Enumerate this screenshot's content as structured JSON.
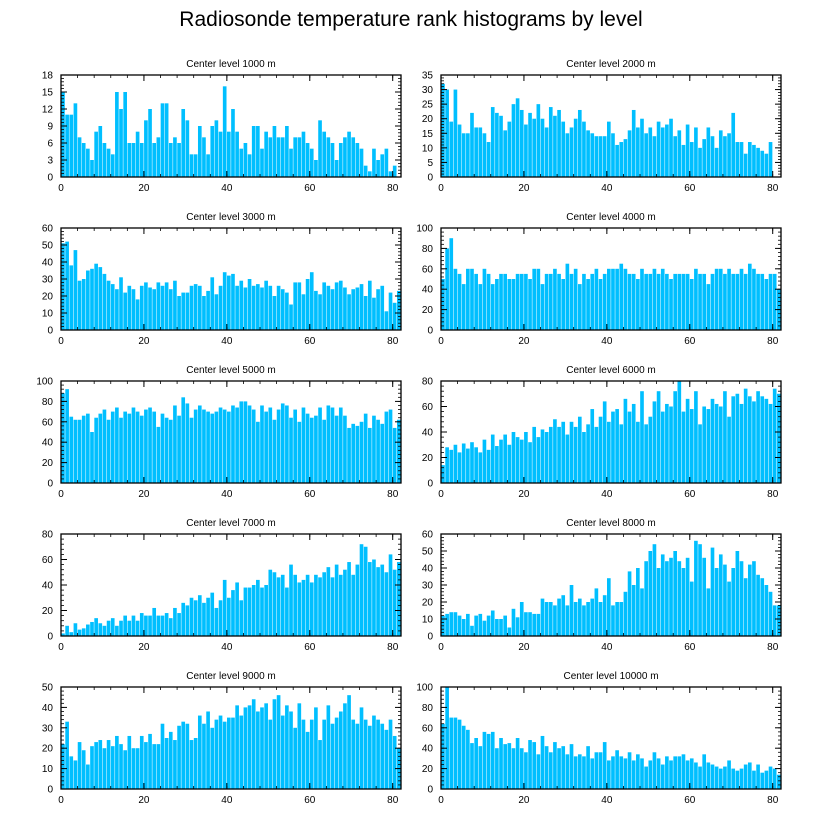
{
  "figure_title": "Radiosonde temperature rank histograms by level",
  "colors": {
    "bar": "#00bfff",
    "bar_edge": "#ffffff",
    "axis": "#000000"
  },
  "chart_data": [
    {
      "type": "bar",
      "title": "Center level 1000 m",
      "xlim": [
        0,
        82
      ],
      "ylim": [
        0,
        18
      ],
      "xticks": [
        0,
        20,
        40,
        60,
        80
      ],
      "yticks": [
        0,
        3,
        6,
        9,
        12,
        15,
        18
      ],
      "values": [
        15,
        11,
        11,
        13,
        7,
        6,
        5,
        3,
        8,
        9,
        6,
        5,
        4,
        15,
        12,
        15,
        6,
        6,
        8,
        6,
        10,
        12,
        6,
        7,
        13,
        13,
        6,
        7,
        6,
        12,
        10,
        4,
        4,
        9,
        7,
        4,
        9,
        10,
        8,
        16,
        8,
        12,
        8,
        5,
        6,
        4,
        9,
        9,
        5,
        8,
        7,
        9,
        7,
        7,
        9,
        5,
        7,
        7,
        8,
        6,
        5,
        3,
        10,
        8,
        7,
        6,
        3,
        6,
        7,
        8,
        7,
        6,
        5,
        2,
        1,
        5,
        3,
        4,
        5,
        1,
        2
      ]
    },
    {
      "type": "bar",
      "title": "Center level 2000 m",
      "xlim": [
        0,
        82
      ],
      "ylim": [
        0,
        35
      ],
      "xticks": [
        0,
        20,
        40,
        60,
        80
      ],
      "yticks": [
        0,
        5,
        10,
        15,
        20,
        25,
        30,
        35
      ],
      "values": [
        32,
        30,
        19,
        30,
        18,
        15,
        15,
        22,
        17,
        17,
        15,
        12,
        24,
        22,
        21,
        16,
        19,
        25,
        27,
        23,
        18,
        22,
        20,
        25,
        20,
        17,
        24,
        21,
        23,
        19,
        15,
        17,
        20,
        23,
        19,
        16,
        15,
        14,
        14,
        14,
        19,
        15,
        11,
        12,
        13,
        16,
        23,
        17,
        20,
        15,
        17,
        14,
        19,
        17,
        18,
        20,
        14,
        16,
        11,
        18,
        12,
        17,
        10,
        13,
        17,
        14,
        10,
        16,
        14,
        15,
        22,
        12,
        12,
        8,
        12,
        11,
        10,
        9,
        8,
        12
      ]
    },
    {
      "type": "bar",
      "title": "Center level 3000 m",
      "xlim": [
        0,
        82
      ],
      "ylim": [
        0,
        60
      ],
      "xticks": [
        0,
        20,
        40,
        60,
        80
      ],
      "yticks": [
        0,
        10,
        20,
        30,
        40,
        50,
        60
      ],
      "values": [
        51,
        52,
        38,
        47,
        29,
        30,
        35,
        36,
        39,
        37,
        33,
        29,
        27,
        24,
        31,
        22,
        26,
        24,
        18,
        26,
        28,
        25,
        24,
        28,
        26,
        28,
        24,
        29,
        20,
        22,
        22,
        26,
        27,
        26,
        20,
        23,
        31,
        21,
        26,
        34,
        32,
        33,
        26,
        29,
        25,
        30,
        26,
        27,
        25,
        29,
        26,
        20,
        26,
        24,
        22,
        15,
        28,
        28,
        21,
        30,
        34,
        23,
        21,
        28,
        26,
        24,
        28,
        29,
        25,
        21,
        24,
        25,
        27,
        20,
        29,
        19,
        24,
        26,
        11,
        22,
        16,
        23
      ]
    },
    {
      "type": "bar",
      "title": "Center level 4000 m",
      "xlim": [
        0,
        82
      ],
      "ylim": [
        0,
        100
      ],
      "xticks": [
        0,
        20,
        40,
        60,
        80
      ],
      "yticks": [
        0,
        20,
        40,
        60,
        80,
        100
      ],
      "values": [
        50,
        80,
        90,
        60,
        55,
        45,
        60,
        60,
        55,
        45,
        60,
        55,
        45,
        50,
        55,
        55,
        50,
        50,
        55,
        55,
        55,
        50,
        60,
        60,
        45,
        55,
        55,
        60,
        55,
        50,
        65,
        55,
        60,
        45,
        55,
        50,
        55,
        60,
        50,
        55,
        60,
        60,
        60,
        65,
        60,
        55,
        55,
        50,
        60,
        55,
        55,
        60,
        55,
        60,
        55,
        50,
        55,
        55,
        55,
        55,
        50,
        60,
        55,
        55,
        45,
        55,
        60,
        60,
        55,
        60,
        55,
        55,
        60,
        55,
        65,
        60,
        55,
        55,
        50,
        55,
        55,
        40
      ]
    },
    {
      "type": "bar",
      "title": "Center level 5000 m",
      "xlim": [
        0,
        82
      ],
      "ylim": [
        0,
        100
      ],
      "xticks": [
        0,
        20,
        40,
        60,
        80
      ],
      "yticks": [
        0,
        20,
        40,
        60,
        80,
        100
      ],
      "values": [
        88,
        92,
        65,
        62,
        62,
        66,
        68,
        50,
        64,
        68,
        72,
        62,
        70,
        74,
        64,
        70,
        68,
        74,
        70,
        66,
        72,
        74,
        70,
        55,
        68,
        64,
        62,
        76,
        66,
        84,
        78,
        64,
        72,
        76,
        72,
        70,
        68,
        70,
        74,
        72,
        70,
        76,
        74,
        80,
        80,
        76,
        72,
        60,
        76,
        70,
        74,
        62,
        72,
        78,
        76,
        64,
        72,
        60,
        74,
        68,
        64,
        66,
        74,
        62,
        76,
        74,
        66,
        74,
        66,
        54,
        58,
        56,
        60,
        68,
        54,
        66,
        62,
        58,
        70,
        72,
        54,
        62
      ]
    },
    {
      "type": "bar",
      "title": "Center level 6000 m",
      "xlim": [
        0,
        82
      ],
      "ylim": [
        0,
        80
      ],
      "xticks": [
        0,
        20,
        40,
        60,
        80
      ],
      "yticks": [
        0,
        20,
        40,
        60,
        80
      ],
      "values": [
        14,
        28,
        26,
        30,
        24,
        31,
        27,
        32,
        28,
        24,
        34,
        26,
        38,
        29,
        34,
        38,
        30,
        40,
        36,
        34,
        40,
        32,
        44,
        36,
        42,
        40,
        44,
        50,
        44,
        48,
        38,
        48,
        44,
        52,
        40,
        46,
        58,
        44,
        52,
        64,
        48,
        56,
        58,
        46,
        66,
        56,
        62,
        48,
        72,
        46,
        52,
        64,
        72,
        56,
        62,
        60,
        72,
        80,
        56,
        66,
        58,
        72,
        46,
        60,
        58,
        66,
        62,
        60,
        72,
        52,
        68,
        70,
        62,
        74,
        68,
        64,
        72,
        68,
        66,
        62,
        74,
        70
      ]
    },
    {
      "type": "bar",
      "title": "Center level 7000 m",
      "xlim": [
        0,
        82
      ],
      "ylim": [
        0,
        80
      ],
      "xticks": [
        0,
        20,
        40,
        60,
        80
      ],
      "yticks": [
        0,
        20,
        40,
        60,
        80
      ],
      "values": [
        2,
        8,
        3,
        10,
        5,
        6,
        9,
        11,
        14,
        10,
        8,
        12,
        14,
        8,
        12,
        16,
        12,
        16,
        12,
        18,
        16,
        16,
        22,
        16,
        16,
        18,
        14,
        22,
        18,
        26,
        24,
        30,
        28,
        32,
        26,
        30,
        34,
        22,
        28,
        44,
        30,
        36,
        42,
        28,
        38,
        38,
        40,
        44,
        38,
        40,
        52,
        50,
        46,
        48,
        38,
        56,
        48,
        42,
        44,
        48,
        42,
        48,
        46,
        50,
        54,
        46,
        56,
        48,
        52,
        58,
        48,
        56,
        72,
        70,
        58,
        60,
        54,
        56,
        50,
        64,
        52,
        58
      ]
    },
    {
      "type": "bar",
      "title": "Center level 8000 m",
      "xlim": [
        0,
        82
      ],
      "ylim": [
        0,
        60
      ],
      "xticks": [
        0,
        20,
        40,
        60,
        80
      ],
      "yticks": [
        0,
        10,
        20,
        30,
        40,
        50,
        60
      ],
      "values": [
        12,
        13,
        14,
        14,
        12,
        10,
        13,
        6,
        12,
        13,
        9,
        12,
        15,
        10,
        10,
        12,
        5,
        16,
        11,
        20,
        14,
        14,
        13,
        13,
        22,
        20,
        20,
        18,
        22,
        24,
        18,
        30,
        20,
        22,
        18,
        20,
        22,
        28,
        20,
        24,
        34,
        18,
        20,
        20,
        26,
        38,
        30,
        40,
        28,
        44,
        50,
        54,
        40,
        48,
        44,
        46,
        50,
        44,
        40,
        46,
        32,
        56,
        54,
        46,
        28,
        52,
        40,
        48,
        42,
        32,
        40,
        50,
        44,
        34,
        42,
        44,
        36,
        34,
        30,
        26,
        18,
        18
      ]
    },
    {
      "type": "bar",
      "title": "Center level 9000 m",
      "xlim": [
        0,
        82
      ],
      "ylim": [
        0,
        50
      ],
      "xticks": [
        0,
        20,
        40,
        60,
        80
      ],
      "yticks": [
        0,
        10,
        20,
        30,
        40,
        50
      ],
      "values": [
        22,
        33,
        16,
        14,
        23,
        19,
        12,
        21,
        23,
        24,
        20,
        24,
        21,
        26,
        22,
        19,
        26,
        20,
        20,
        26,
        23,
        27,
        22,
        22,
        32,
        25,
        28,
        24,
        31,
        33,
        32,
        24,
        25,
        36,
        32,
        38,
        30,
        34,
        36,
        33,
        35,
        35,
        41,
        36,
        40,
        41,
        44,
        38,
        40,
        42,
        34,
        44,
        46,
        36,
        41,
        38,
        30,
        42,
        34,
        28,
        34,
        40,
        24,
        34,
        41,
        32,
        35,
        38,
        42,
        46,
        34,
        32,
        40,
        34,
        31,
        36,
        34,
        32,
        29,
        34,
        26,
        20
      ]
    },
    {
      "type": "bar",
      "title": "Center level 10000 m",
      "xlim": [
        0,
        82
      ],
      "ylim": [
        0,
        100
      ],
      "xticks": [
        0,
        20,
        40,
        60,
        80
      ],
      "yticks": [
        0,
        20,
        40,
        60,
        80,
        100
      ],
      "values": [
        64,
        100,
        70,
        70,
        68,
        62,
        58,
        45,
        50,
        42,
        56,
        54,
        56,
        40,
        50,
        44,
        45,
        40,
        50,
        40,
        36,
        48,
        46,
        34,
        52,
        42,
        36,
        46,
        40,
        42,
        34,
        44,
        32,
        34,
        32,
        42,
        30,
        36,
        36,
        46,
        28,
        32,
        38,
        32,
        30,
        36,
        28,
        34,
        30,
        22,
        28,
        36,
        30,
        24,
        32,
        28,
        32,
        32,
        34,
        28,
        30,
        26,
        22,
        34,
        26,
        24,
        22,
        20,
        22,
        28,
        20,
        18,
        20,
        24,
        26,
        18,
        24,
        16,
        18,
        22,
        20,
        14
      ]
    }
  ]
}
